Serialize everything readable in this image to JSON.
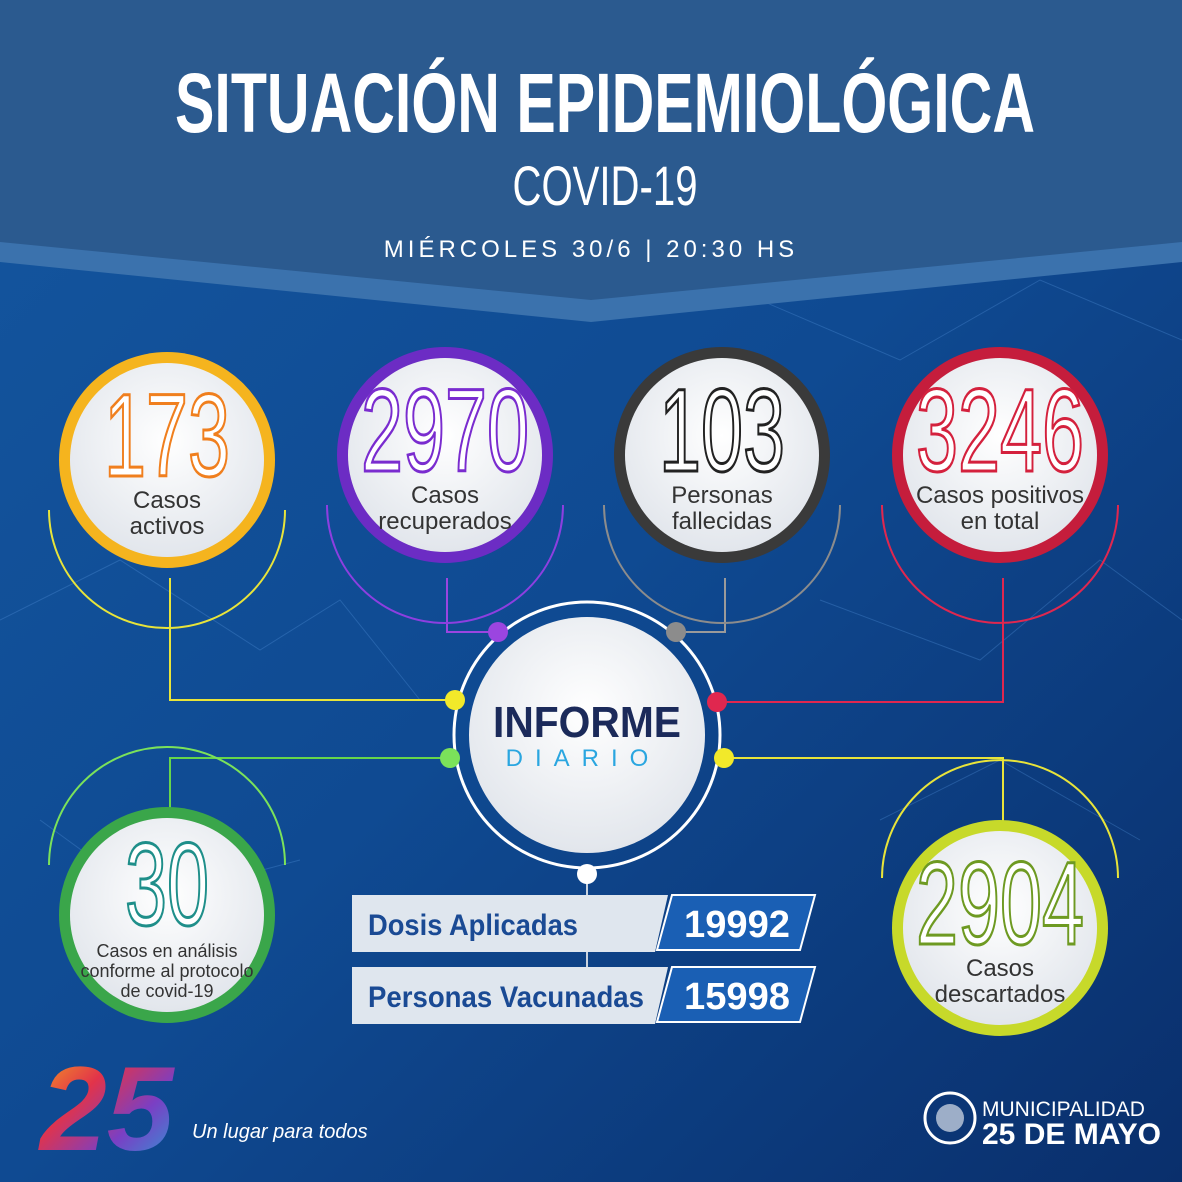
{
  "header": {
    "title": "SITUACIÓN EPIDEMIOLÓGICA",
    "subtitle": "COVID-19",
    "date": "MIÉRCOLES 30/6 | 20:30 HS"
  },
  "stats": [
    {
      "value": 173,
      "label": [
        "Casos",
        "activos"
      ]
    },
    {
      "value": 2970,
      "label": [
        "Casos",
        "recuperados"
      ]
    },
    {
      "value": 103,
      "label": [
        "Personas",
        "fallecidas"
      ]
    },
    {
      "value": 3246,
      "label": [
        "Casos positivos",
        "en total"
      ]
    },
    {
      "value": 30,
      "label": [
        "Casos en análisis",
        "conforme al protocolo",
        "de covid-19"
      ]
    },
    {
      "value": 2904,
      "label": [
        "Casos",
        "descartados"
      ]
    }
  ],
  "center": {
    "title": "INFORME",
    "subtitle": "DIARIO"
  },
  "vaccination": [
    {
      "label": "Dosis Aplicadas",
      "value": 19992
    },
    {
      "label": "Personas Vacunadas",
      "value": 15998
    }
  ],
  "footer": {
    "logo": "25",
    "tagline": "Un lugar para todos",
    "organization": [
      "MUNICIPALIDAD",
      "25 DE MAYO"
    ]
  }
}
